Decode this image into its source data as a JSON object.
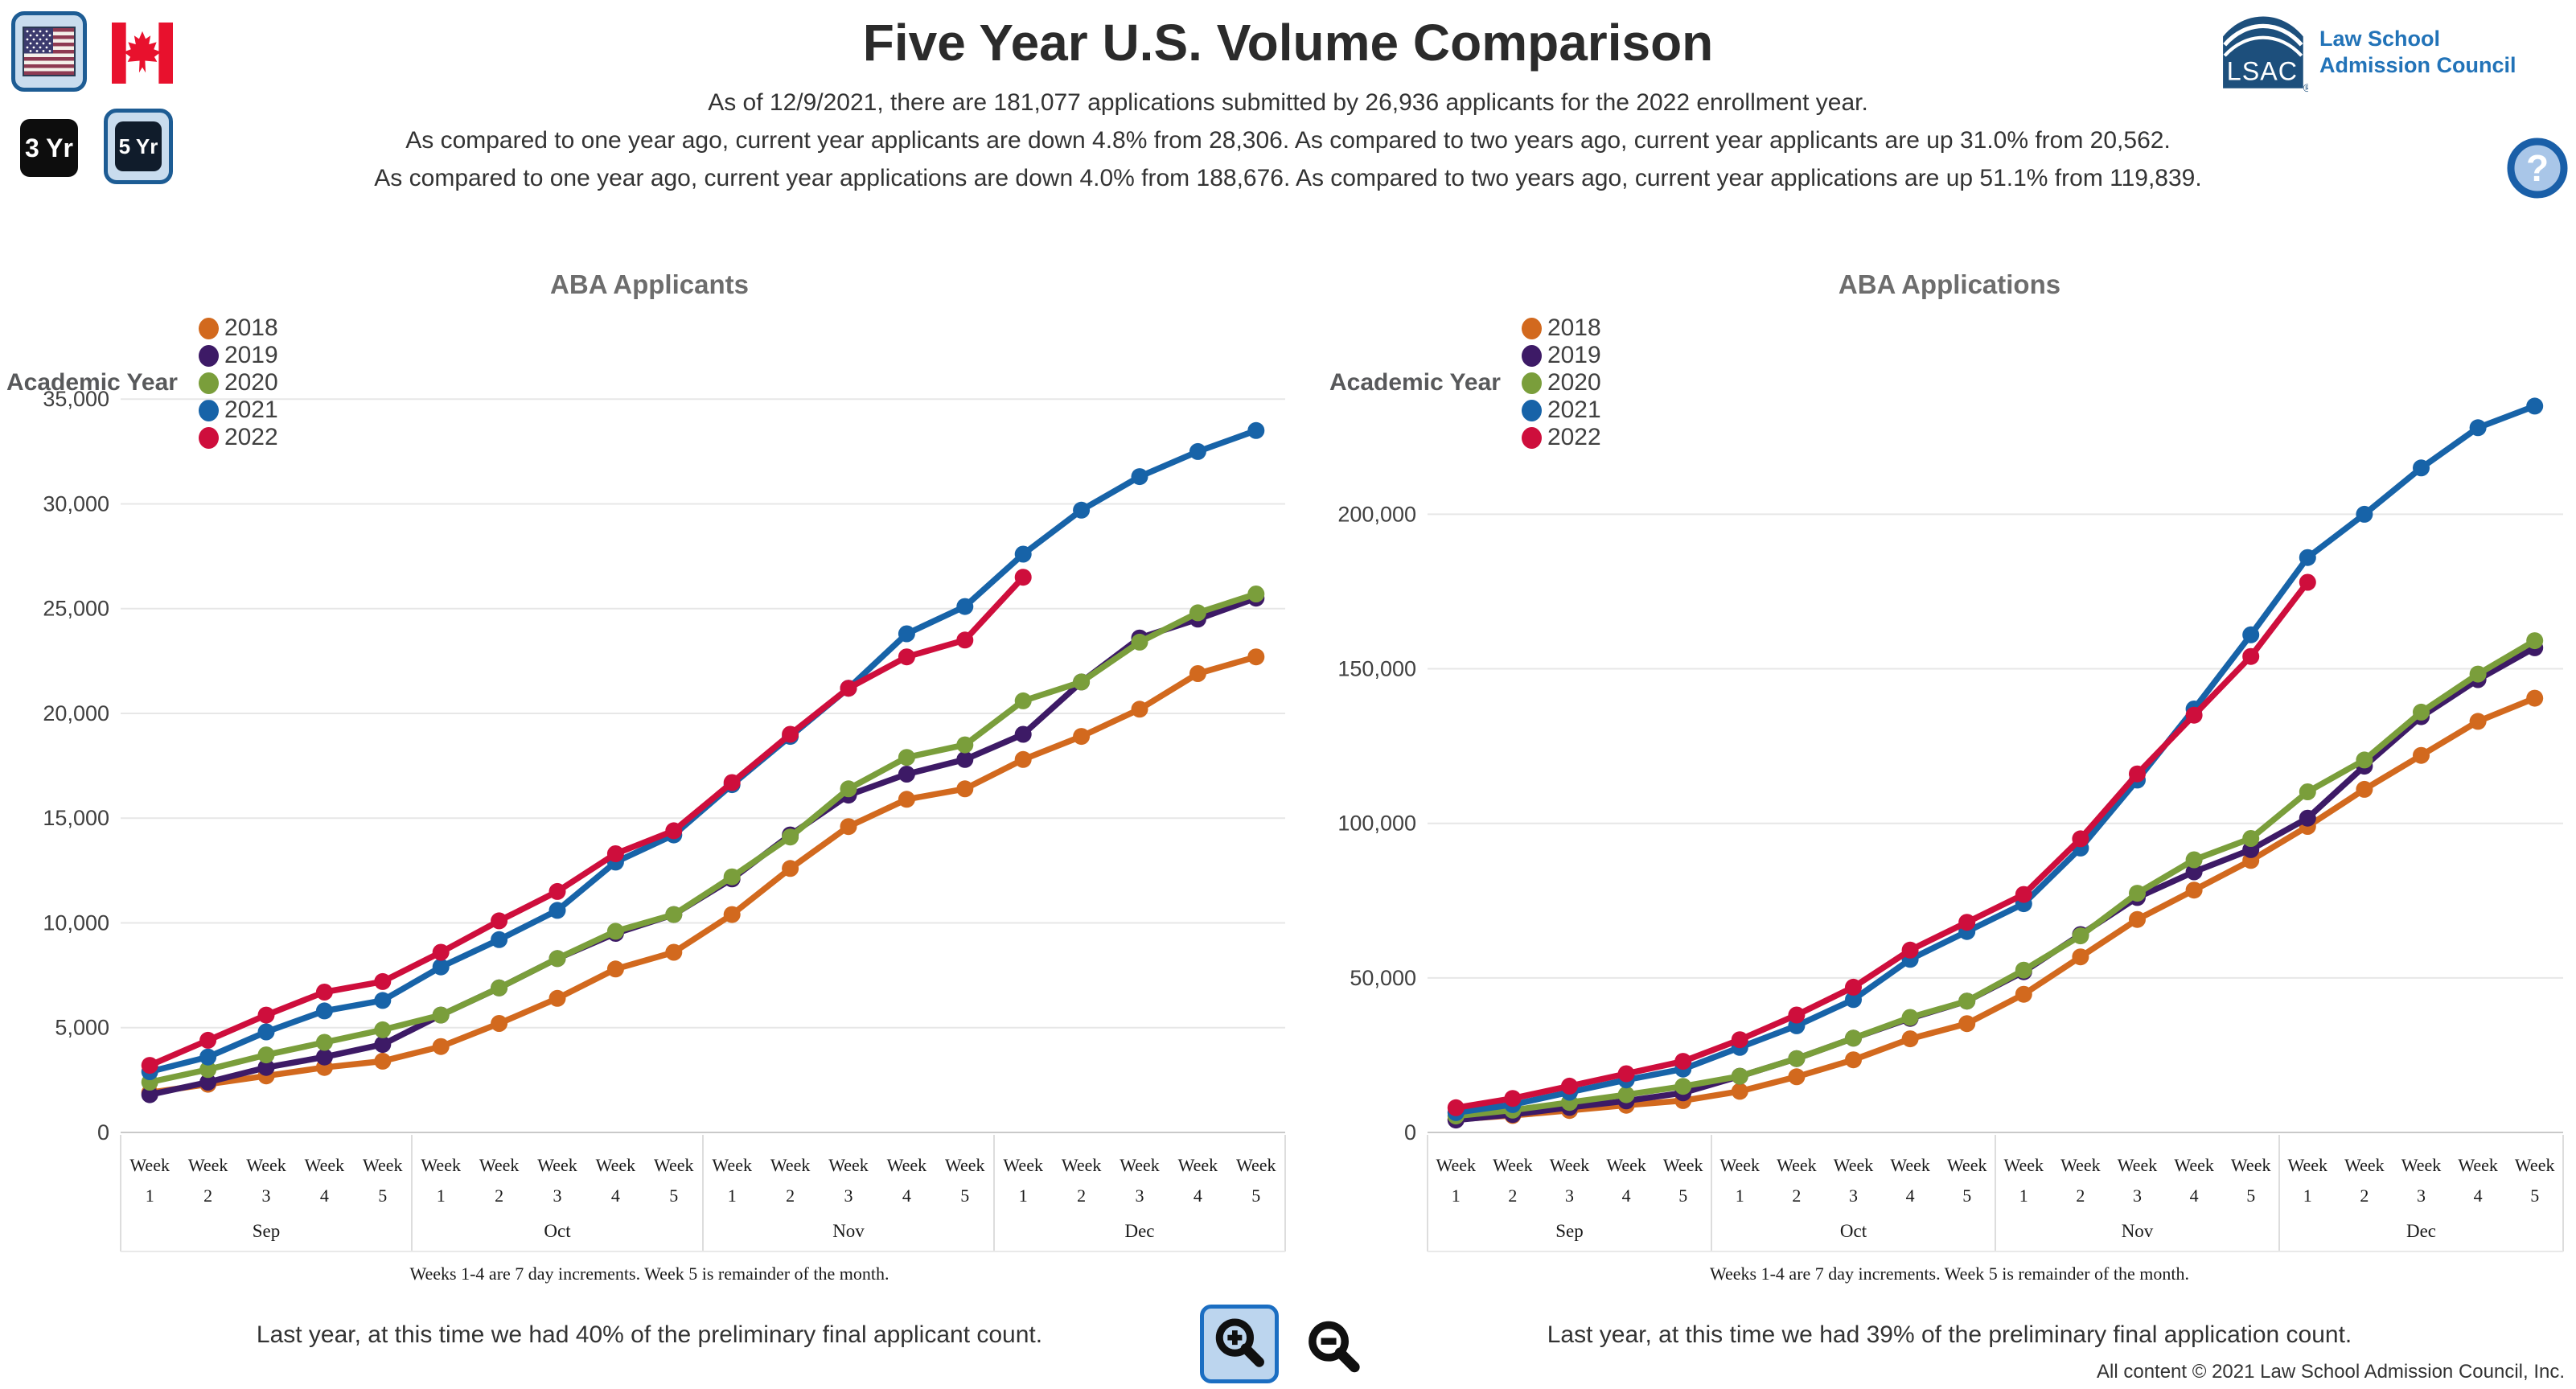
{
  "header": {
    "title": "Five Year U.S. Volume Comparison",
    "subtitle_lines": [
      "As of 12/9/2021, there are 181,077 applications submitted by 26,936 applicants for the 2022 enrollment year.",
      "As compared to one year ago, current year applicants are down 4.8% from 28,306. As compared to two years ago, current year applicants are up 31.0% from 20,562.",
      "As compared to one year ago, current year applications are down 4.0% from 188,676. As compared to two years ago, current year applications are up 51.1% from 119,839."
    ]
  },
  "controls": {
    "us_flag_icon": "us-flag",
    "canada_flag_icon": "canada-flag",
    "three_year_label": "3 Yr",
    "five_year_label": "5 Yr",
    "selected_region": "US",
    "selected_span": "5 Yr",
    "selected_color": "#1d5c94",
    "selected_bg": "#c9dcee"
  },
  "logo": {
    "abbr": "LSAC",
    "registered": "®",
    "name_line1": "Law School",
    "name_line2": "Admission Council",
    "mark_color": "#1d4f7c",
    "text_color": "#2273b8"
  },
  "help": {
    "icon": "question-mark",
    "glyph": "?"
  },
  "zoom_controls": {
    "zoom_in_icon": "magnifier-plus",
    "zoom_out_icon": "magnifier-minus"
  },
  "footer": "All content © 2021 Law School Admission Council, Inc.",
  "chart_data": [
    {
      "type": "line",
      "title": "ABA Applicants",
      "legend_title": "Academic Year",
      "legend_position": "top-left",
      "grid": true,
      "categories": [
        "Week 1",
        "Week 2",
        "Week 3",
        "Week 4",
        "Week 5",
        "Week 1",
        "Week 2",
        "Week 3",
        "Week 4",
        "Week 5",
        "Week 1",
        "Week 2",
        "Week 3",
        "Week 4",
        "Week 5",
        "Week 1",
        "Week 2",
        "Week 3",
        "Week 4",
        "Week 5"
      ],
      "month_groups": [
        "Sep",
        "Oct",
        "Nov",
        "Dec"
      ],
      "xlabel": "",
      "ylabel": "",
      "ylim": [
        0,
        35700
      ],
      "yticks": [
        0,
        5000,
        10000,
        15000,
        20000,
        25000,
        30000,
        35000
      ],
      "series": [
        {
          "name": "2018",
          "color": "#D2691E",
          "values": [
            1900,
            2300,
            2700,
            3100,
            3400,
            4100,
            5200,
            6400,
            7800,
            8600,
            10400,
            12600,
            14600,
            15900,
            16400,
            17800,
            18900,
            20200,
            21900,
            22700
          ]
        },
        {
          "name": "2019",
          "color": "#3D1A66",
          "values": [
            1800,
            2400,
            3100,
            3600,
            4200,
            5600,
            6900,
            8300,
            9500,
            10400,
            12100,
            14200,
            16100,
            17100,
            17800,
            19000,
            21500,
            23600,
            24500,
            25500
          ]
        },
        {
          "name": "2020",
          "color": "#7A9E3B",
          "values": [
            2400,
            3000,
            3700,
            4300,
            4900,
            5600,
            6900,
            8300,
            9600,
            10400,
            12200,
            14100,
            16400,
            17900,
            18500,
            20600,
            21500,
            23400,
            24800,
            25700
          ]
        },
        {
          "name": "2021",
          "color": "#1763A8",
          "values": [
            2900,
            3600,
            4800,
            5800,
            6300,
            7900,
            9200,
            10600,
            12900,
            14200,
            16600,
            18900,
            21200,
            23800,
            25100,
            27600,
            29700,
            31300,
            32500,
            33500
          ]
        },
        {
          "name": "2022",
          "color": "#CE0E3C",
          "values": [
            3200,
            4400,
            5600,
            6700,
            7200,
            8600,
            10100,
            11500,
            13300,
            14400,
            16700,
            19000,
            21200,
            22700,
            23500,
            26500
          ]
        }
      ],
      "caption": "Weeks 1-4 are 7 day increments. Week 5 is remainder of the month.",
      "note": "Last year, at this time we had 40% of the preliminary final applicant count."
    },
    {
      "type": "line",
      "title": "ABA Applications",
      "legend_title": "Academic Year",
      "legend_position": "top-left",
      "grid": true,
      "categories": [
        "Week 1",
        "Week 2",
        "Week 3",
        "Week 4",
        "Week 5",
        "Week 1",
        "Week 2",
        "Week 3",
        "Week 4",
        "Week 5",
        "Week 1",
        "Week 2",
        "Week 3",
        "Week 4",
        "Week 5",
        "Week 1",
        "Week 2",
        "Week 3",
        "Week 4",
        "Week 5"
      ],
      "month_groups": [
        "Sep",
        "Oct",
        "Nov",
        "Dec"
      ],
      "xlabel": "",
      "ylabel": "",
      "ylim": [
        0,
        242000
      ],
      "yticks": [
        0,
        50000,
        100000,
        150000,
        200000
      ],
      "series": [
        {
          "name": "2018",
          "color": "#D2691E",
          "values": [
            4200,
            5500,
            7100,
            8800,
            10300,
            13300,
            18000,
            23500,
            30300,
            35200,
            44700,
            56800,
            68900,
            78400,
            88000,
            99000,
            111000,
            122000,
            133000,
            140500
          ]
        },
        {
          "name": "2019",
          "color": "#3D1A66",
          "values": [
            4000,
            5800,
            8100,
            10200,
            12800,
            18200,
            23900,
            30500,
            36900,
            42500,
            52000,
            64000,
            76000,
            84300,
            91500,
            101700,
            118500,
            134500,
            146500,
            156800
          ]
        },
        {
          "name": "2020",
          "color": "#7A9E3B",
          "values": [
            5300,
            7200,
            9700,
            12200,
            14900,
            18200,
            23900,
            30500,
            37200,
            42500,
            52500,
            63600,
            77400,
            88200,
            95100,
            110200,
            120500,
            136000,
            148300,
            159100
          ]
        },
        {
          "name": "2021",
          "color": "#1763A8",
          "values": [
            6400,
            9000,
            13000,
            17000,
            20500,
            27500,
            34500,
            43000,
            56000,
            65000,
            74000,
            92000,
            114000,
            137000,
            161000,
            186000,
            200000,
            215000,
            228000,
            235000
          ]
        },
        {
          "name": "2022",
          "color": "#CE0E3C",
          "values": [
            8000,
            11000,
            15000,
            19000,
            23000,
            30000,
            38000,
            47000,
            59000,
            68000,
            77000,
            95000,
            116000,
            135000,
            154000,
            178000
          ]
        }
      ],
      "caption": "Weeks 1-4 are 7 day increments. Week 5 is remainder of the month.",
      "note": "Last year, at this time we had 39% of the preliminary final application count."
    }
  ]
}
